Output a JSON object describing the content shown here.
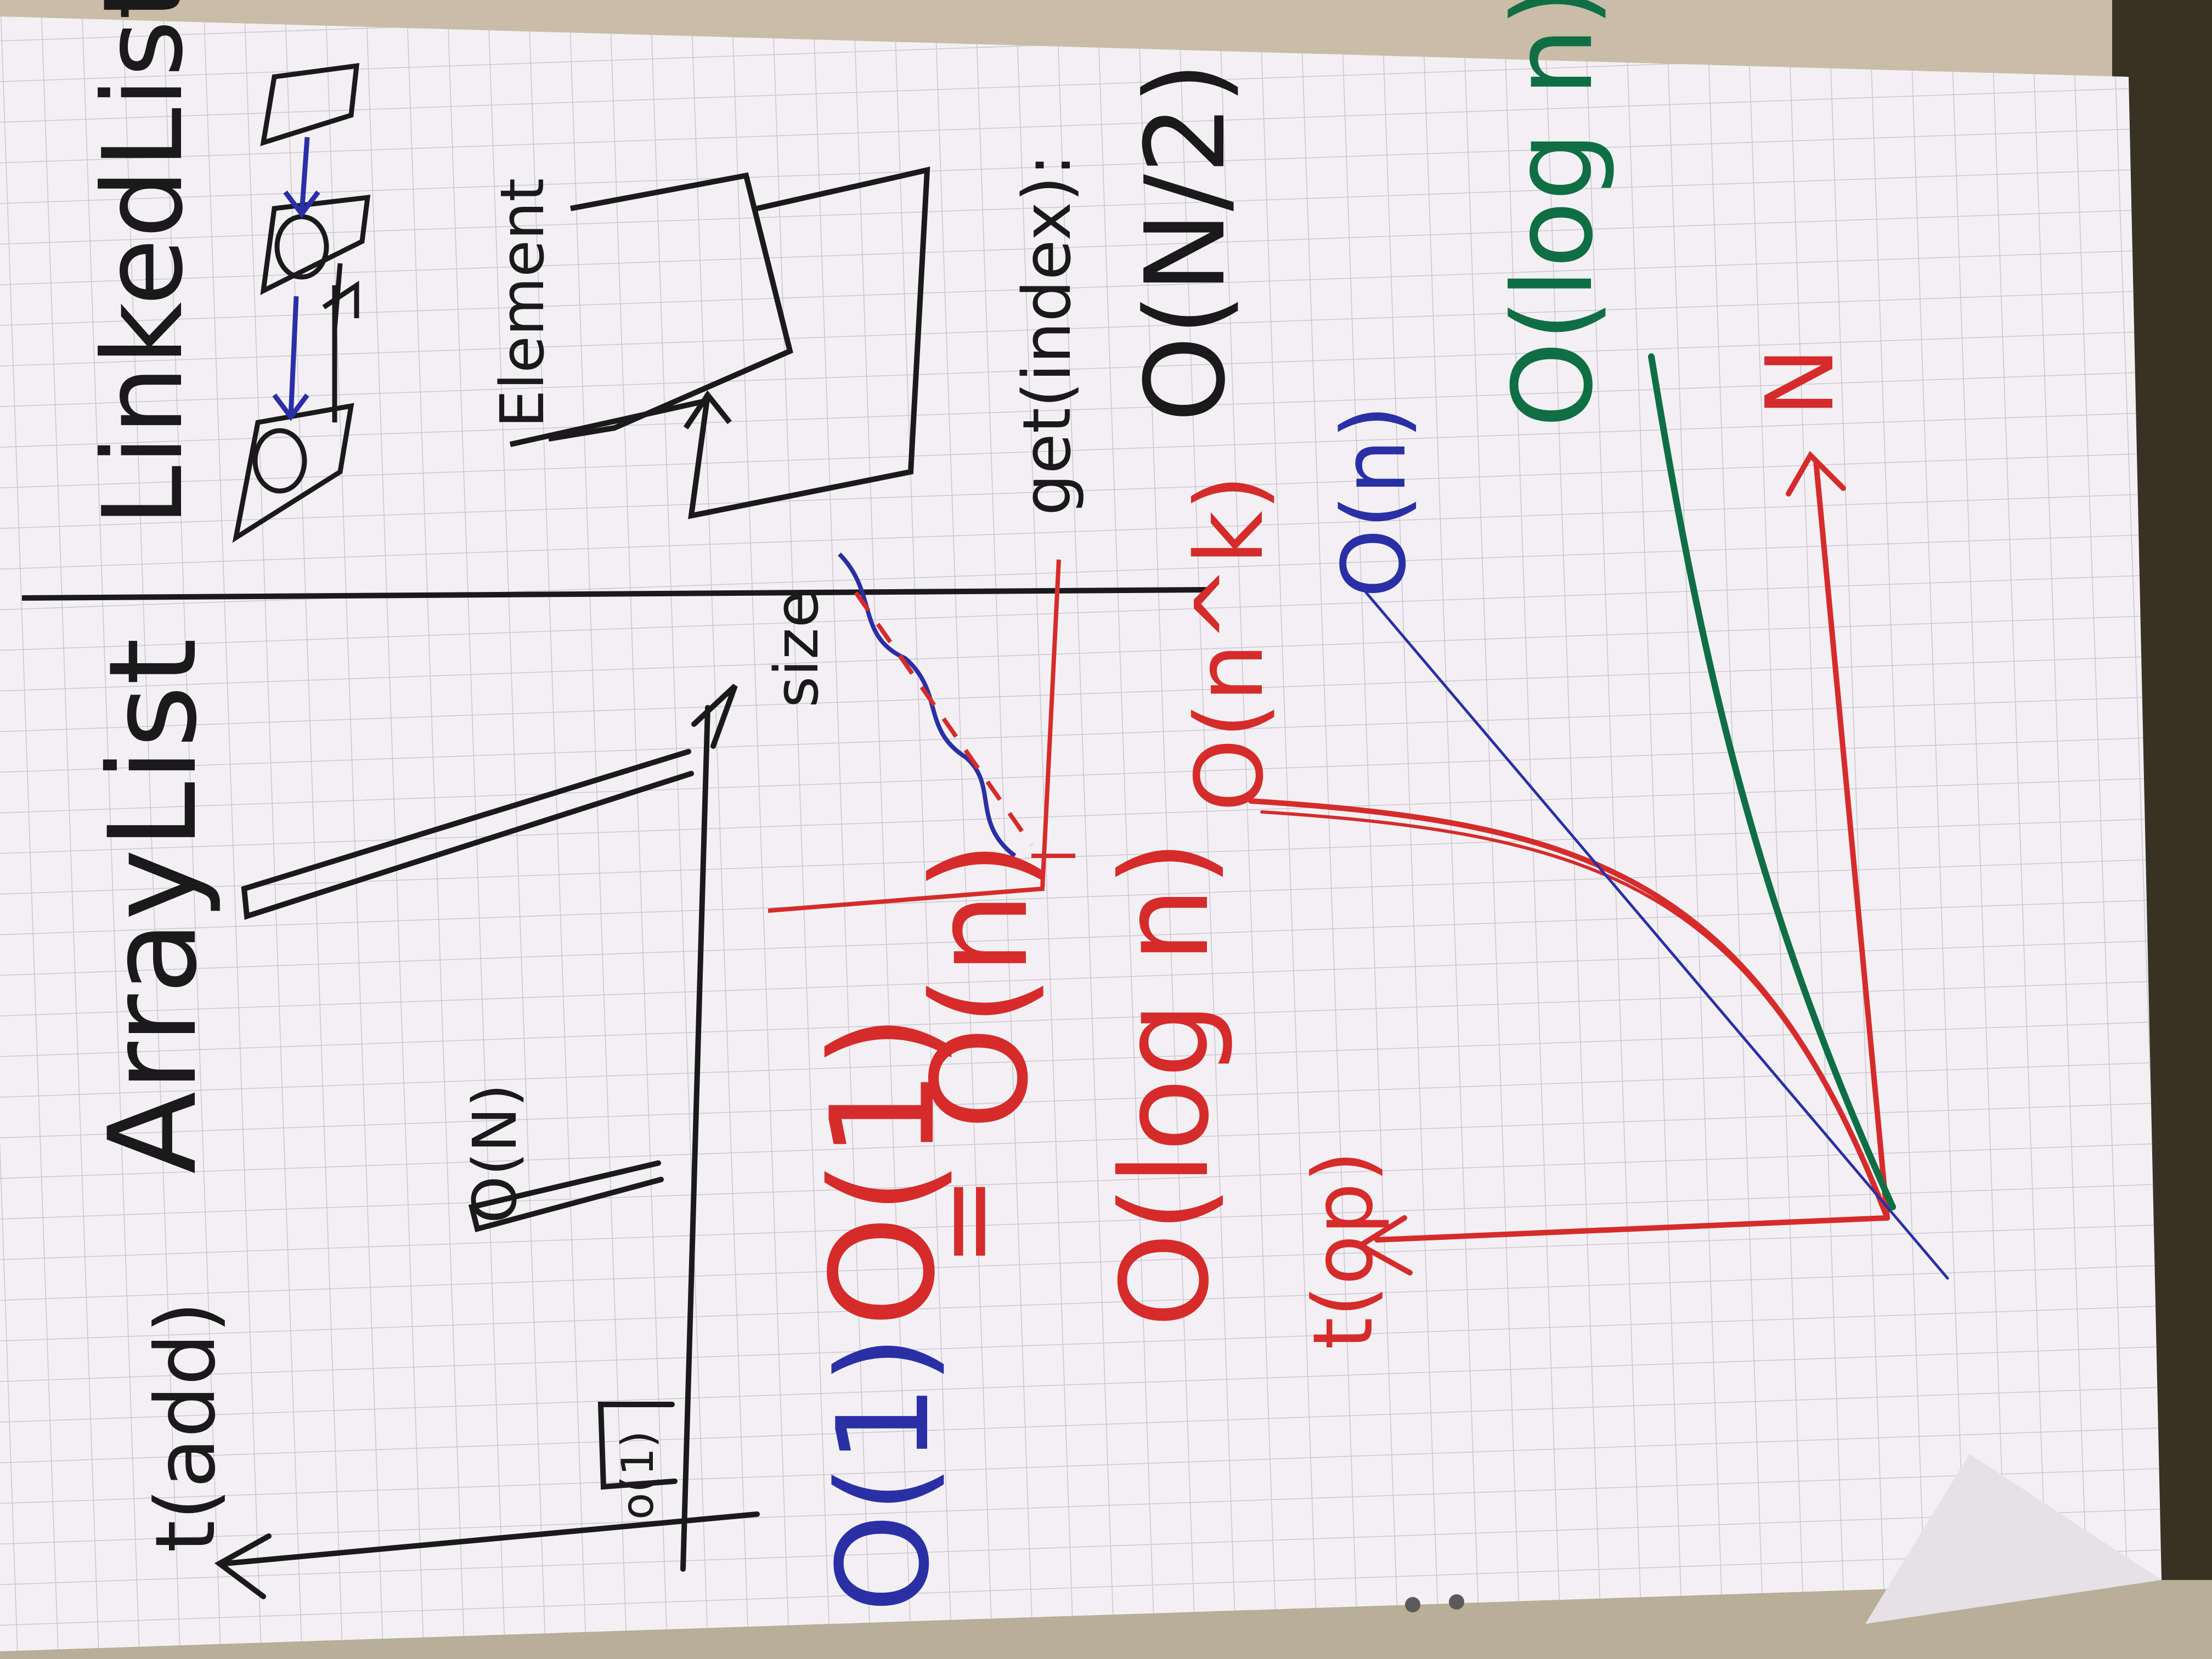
{
  "photo": {
    "subject": "flipchart-sheet",
    "colors": {
      "paper": "#f2f0f3",
      "grid": "#c9c7cf",
      "background_top": "#c9bda7",
      "background_right": "#3a3125",
      "black_marker": "#1a1a1a",
      "red_marker": "#d62b2b",
      "blue_marker": "#2b2fa6",
      "green_marker": "#0f6e44"
    }
  },
  "board": {
    "headings": {
      "array_list": "ArrayList",
      "linked_list": "LinkedList"
    },
    "left_chart": {
      "y_axis_label": "t(add)",
      "x_axis_label": "size",
      "small_bar_label": "o(1)",
      "tall_bar_label": "O(N)"
    },
    "linked_list": {
      "element_label": "Element",
      "get_label": "get(index):",
      "get_complexity": "O(N/2)"
    },
    "complexities": {
      "constant_blue": "O(1)",
      "constant_red": "O(1)",
      "equals": "=",
      "linear_red": "O(n)",
      "log_red": "O(log n)",
      "poly_red": "O(n^k)",
      "linear_blue": "O(n)",
      "log_green": "O(log n)"
    },
    "growth_chart": {
      "y_axis_label": "t(op)",
      "x_axis_label": "N"
    }
  }
}
